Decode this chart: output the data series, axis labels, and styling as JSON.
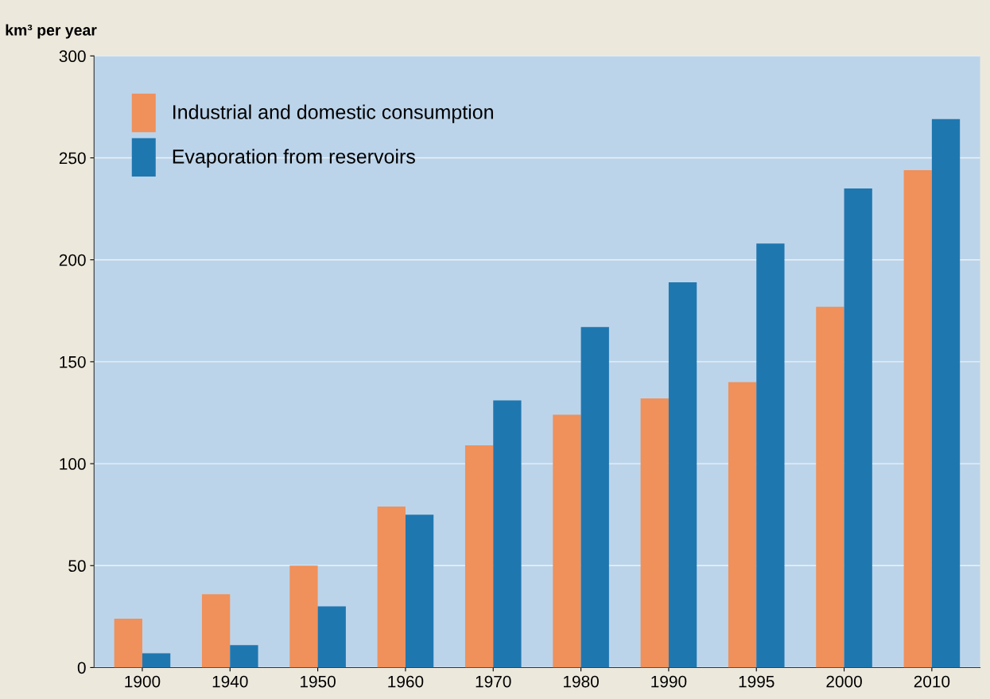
{
  "chart_data": {
    "type": "bar",
    "ylabel": "km³ per year",
    "categories": [
      "1900",
      "1940",
      "1950",
      "1960",
      "1970",
      "1980",
      "1990",
      "1995",
      "2000",
      "2010"
    ],
    "series": [
      {
        "name": "Industrial and domestic consumption",
        "color": "#f0905a",
        "values": [
          24,
          36,
          50,
          79,
          109,
          124,
          132,
          140,
          177,
          244
        ]
      },
      {
        "name": "Evaporation from reservoirs",
        "color": "#1f77b0",
        "values": [
          7,
          11,
          30,
          75,
          131,
          167,
          189,
          208,
          235,
          269
        ]
      }
    ],
    "ylim": [
      0,
      300
    ],
    "yticks": [
      0,
      50,
      100,
      150,
      200,
      250,
      300
    ],
    "grid": "y",
    "legend": "top left"
  }
}
